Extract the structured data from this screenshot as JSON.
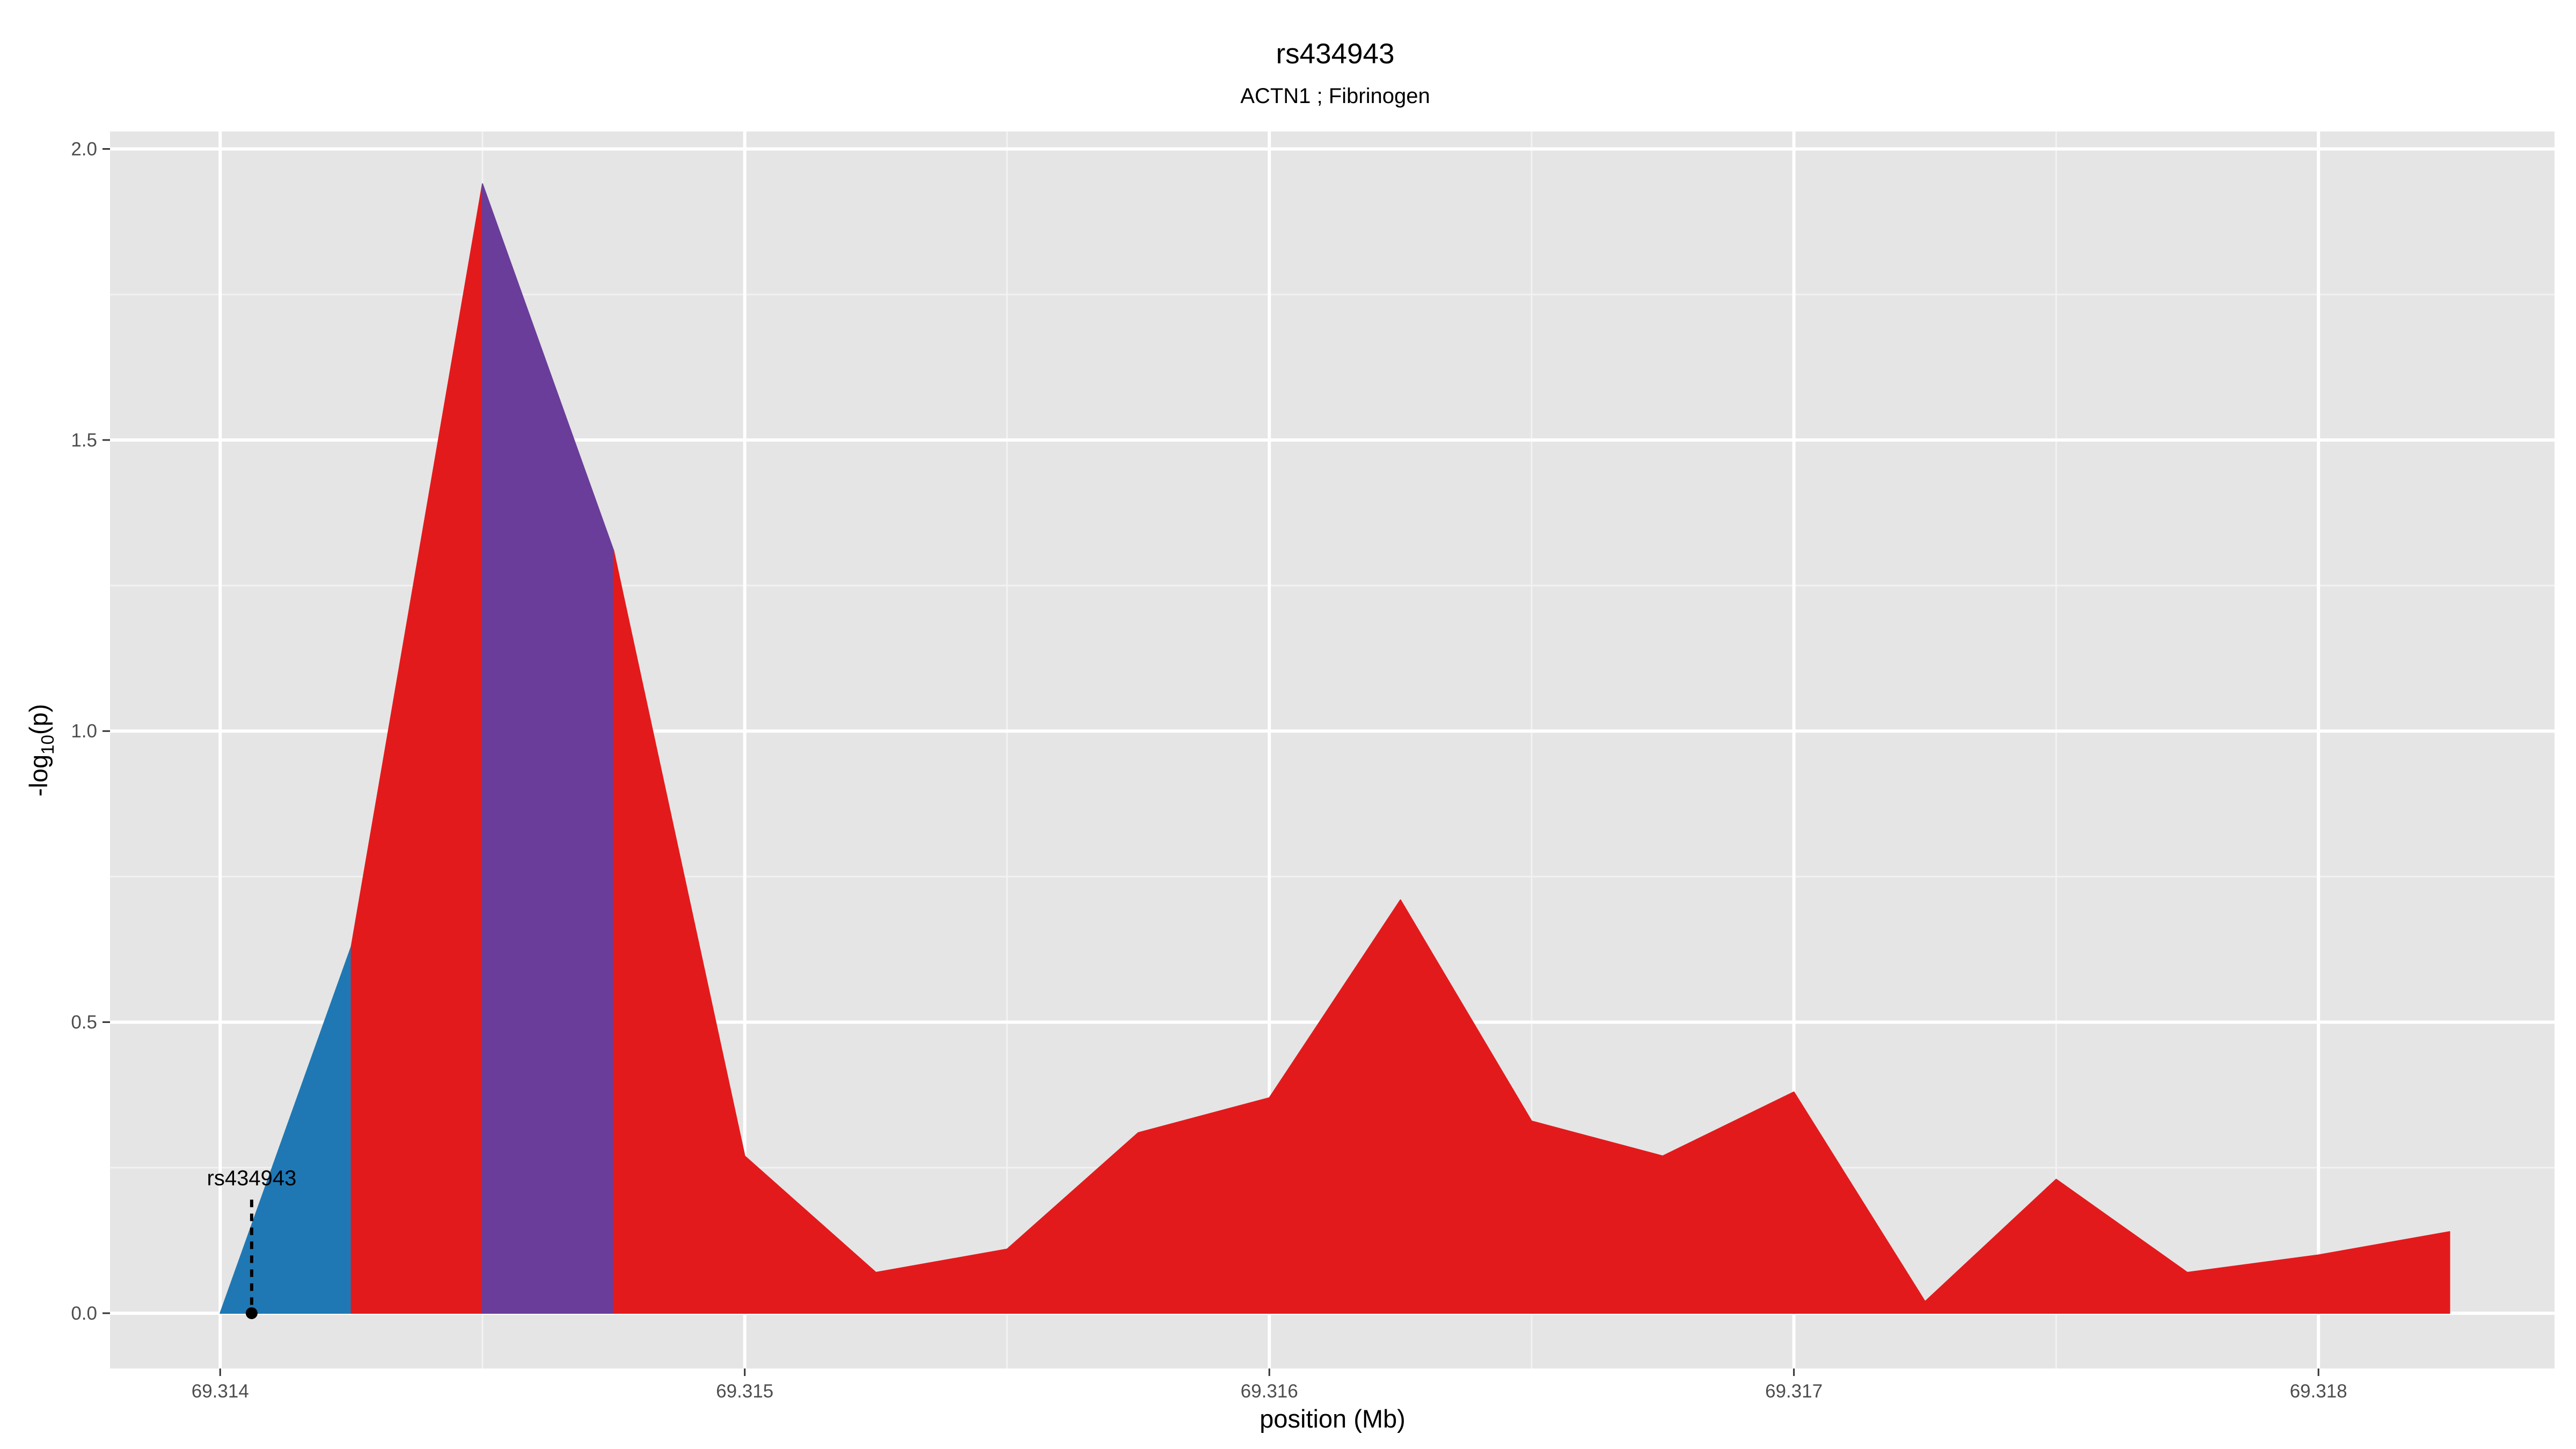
{
  "chart_data": {
    "type": "area",
    "title": "rs434943",
    "subtitle": "ACTN1 ; Fibrinogen",
    "xlabel": "position (Mb)",
    "ylabel_main": "-log",
    "ylabel_sub": "10",
    "ylabel_tail": "(p)",
    "xlim": [
      69.31379,
      69.31845
    ],
    "ylim": [
      -0.095,
      2.03
    ],
    "x_ticks": [
      69.314,
      69.315,
      69.316,
      69.317,
      69.318
    ],
    "x_tick_labels": [
      "69.314",
      "69.315",
      "69.316",
      "69.317",
      "69.318"
    ],
    "y_ticks": [
      0.0,
      0.5,
      1.0,
      1.5,
      2.0
    ],
    "y_tick_labels": [
      "0.0",
      "0.5",
      "1.0",
      "1.5",
      "2.0"
    ],
    "grid": true,
    "series": [
      {
        "color": "#1f78b4",
        "points": [
          [
            69.314,
            0.0
          ],
          [
            69.31425,
            0.63
          ]
        ]
      },
      {
        "color": "#e31a1c",
        "points": [
          [
            69.31425,
            0.63
          ],
          [
            69.3145,
            1.94
          ]
        ]
      },
      {
        "color": "#6a3d9a",
        "points": [
          [
            69.3145,
            1.94
          ],
          [
            69.31475,
            1.31
          ]
        ]
      },
      {
        "color": "#e31a1c",
        "points": [
          [
            69.31475,
            1.31
          ],
          [
            69.315,
            0.27
          ],
          [
            69.31525,
            0.07
          ],
          [
            69.3155,
            0.11
          ],
          [
            69.31575,
            0.31
          ],
          [
            69.316,
            0.37
          ],
          [
            69.31625,
            0.71
          ],
          [
            69.3165,
            0.33
          ],
          [
            69.31675,
            0.27
          ],
          [
            69.317,
            0.38
          ],
          [
            69.31725,
            0.02
          ],
          [
            69.3175,
            0.23
          ],
          [
            69.31775,
            0.07
          ],
          [
            69.318,
            0.1
          ],
          [
            69.31825,
            0.14
          ]
        ]
      }
    ],
    "annotation": {
      "label": "rs434943",
      "x": 69.31406,
      "y": 0.0,
      "line_top": 0.195,
      "label_y": 0.22
    }
  }
}
